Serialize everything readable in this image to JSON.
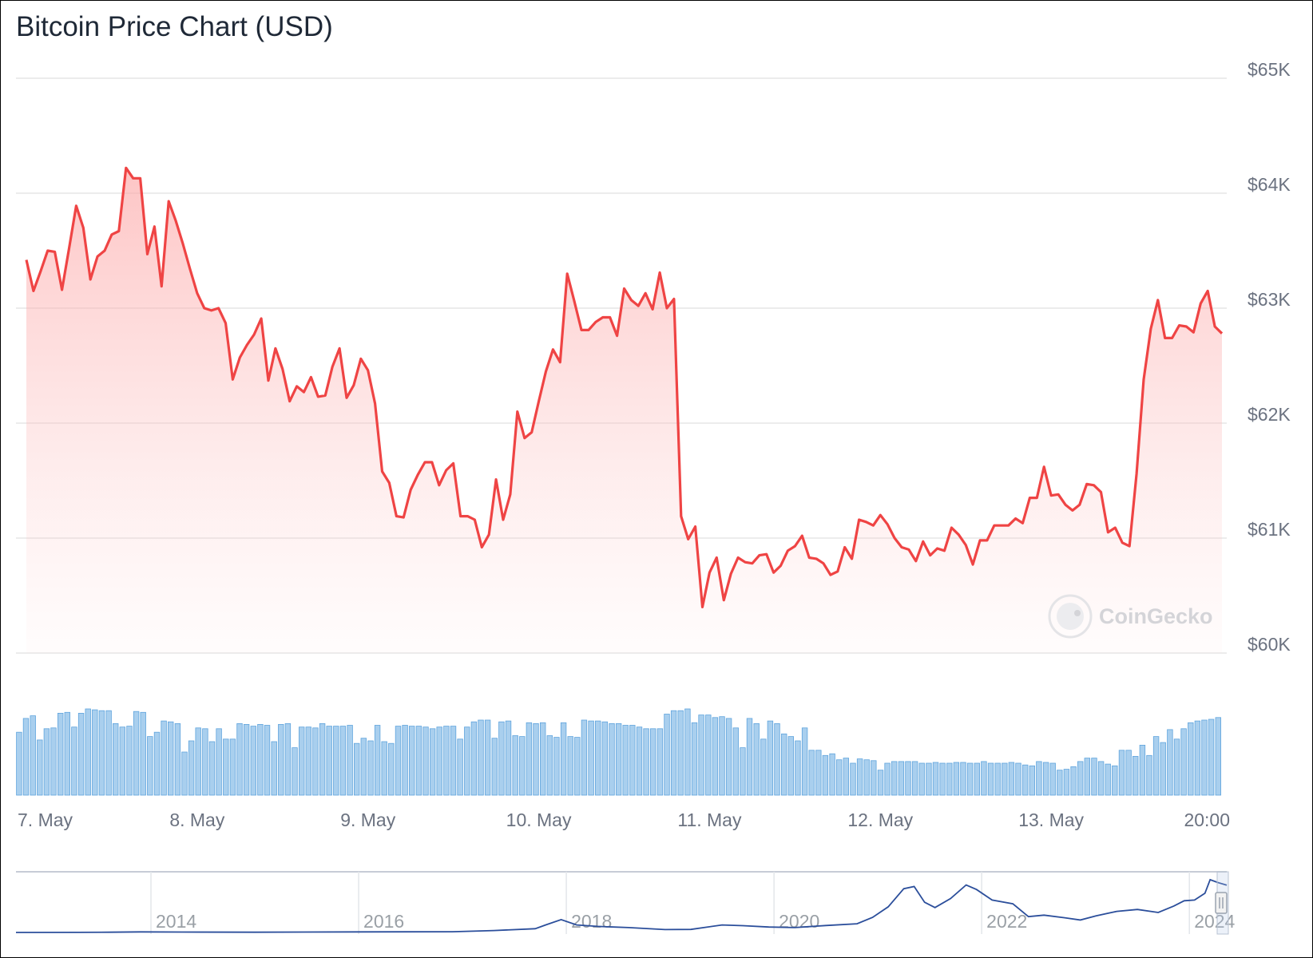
{
  "title": "Bitcoin Price Chart (USD)",
  "watermark": "CoinGecko",
  "colors": {
    "line": "#ef4444",
    "area": "#fecaca",
    "volume": "#a9cfee",
    "volume_stroke": "#5fa4dd",
    "navigator": "#2b4e9b"
  },
  "chart_data": [
    {
      "type": "line",
      "title": "Bitcoin Price Chart (USD)",
      "x_range": [
        "7. May",
        "20:00 13. May"
      ],
      "y_axis": {
        "ticks": [
          60000,
          61000,
          62000,
          63000,
          64000,
          65000
        ],
        "tick_labels": [
          "$60K",
          "$61K",
          "$62K",
          "$63K",
          "$64K",
          "$65K"
        ],
        "min": 60000,
        "max": 65000,
        "position": "right"
      },
      "x_axis": {
        "tick_labels": [
          "7. May",
          "8. May",
          "9. May",
          "10. May",
          "11. May",
          "12. May",
          "13. May",
          "20:00"
        ],
        "tick_hours": [
          0,
          24,
          48,
          72,
          96,
          120,
          144,
          164
        ]
      },
      "grid": true,
      "series": [
        {
          "hours": [
            0,
            1,
            2,
            3,
            4,
            5,
            6,
            7,
            8,
            9,
            10,
            11,
            12,
            13,
            14,
            15,
            16,
            17,
            18,
            19,
            20,
            21,
            22,
            23,
            24,
            25,
            26,
            27,
            28,
            29,
            30,
            31,
            32,
            33,
            34,
            35,
            36,
            37,
            38,
            39,
            40,
            41,
            42,
            43,
            44,
            45,
            46,
            47,
            48,
            49,
            50,
            51,
            52,
            53,
            54,
            55,
            56,
            57,
            58,
            59,
            60,
            61,
            62,
            63,
            64,
            65,
            66,
            67,
            68,
            69,
            70,
            71,
            72,
            73,
            74,
            75,
            76,
            77,
            78,
            79,
            80,
            81,
            82,
            83,
            84,
            85,
            86,
            87,
            88,
            89,
            90,
            91,
            92,
            93,
            94,
            95,
            96,
            97,
            98,
            99,
            100,
            101,
            102,
            103,
            104,
            105,
            106,
            107,
            108,
            109,
            110,
            111,
            112,
            113,
            114,
            115,
            116,
            117,
            118,
            119,
            120,
            121,
            122,
            123,
            124,
            125,
            126,
            127,
            128,
            129,
            130,
            131,
            132,
            133,
            134,
            135,
            136,
            137,
            138,
            139,
            140,
            141,
            142,
            143,
            144,
            145,
            146,
            147,
            148,
            149,
            150,
            151,
            152,
            153,
            154,
            155,
            156,
            157,
            158,
            159,
            160,
            161,
            162,
            163,
            164,
            165,
            166,
            167,
            168
          ],
          "values": [
            63420,
            63150,
            63320,
            63500,
            63490,
            63160,
            63520,
            63890,
            63700,
            63250,
            63450,
            63500,
            63640,
            63670,
            64220,
            64130,
            64130,
            63470,
            63710,
            63190,
            63930,
            63760,
            63560,
            63340,
            63130,
            63000,
            62980,
            63000,
            62870,
            62380,
            62570,
            62680,
            62770,
            62910,
            62370,
            62650,
            62470,
            62190,
            62320,
            62270,
            62400,
            62230,
            62240,
            62490,
            62650,
            62220,
            62330,
            62560,
            62460,
            62170,
            61580,
            61480,
            61190,
            61180,
            61420,
            61550,
            61660,
            61660,
            61460,
            61590,
            61650,
            61190,
            61190,
            61160,
            60920,
            61030,
            61510,
            61160,
            61380,
            62100,
            61870,
            61920,
            62190,
            62450,
            62640,
            62530,
            63300,
            63060,
            62810,
            62810,
            62880,
            62920,
            62920,
            62760,
            63170,
            63070,
            63020,
            63130,
            62990,
            63310,
            63000,
            63080,
            61190,
            60990,
            61100,
            60400,
            60700,
            60830,
            60460,
            60690,
            60830,
            60790,
            60780,
            60850,
            60860,
            60700,
            60760,
            60890,
            60930,
            61020,
            60830,
            60820,
            60780,
            60680,
            60710,
            60920,
            60820,
            61160,
            61140,
            61110,
            61200,
            61120,
            61000,
            60920,
            60900,
            60800,
            60970,
            60850,
            60910,
            60890,
            61090,
            61030,
            60940,
            60770,
            60980,
            60980,
            61110,
            61110,
            61110,
            61170,
            61130,
            61350,
            61350,
            61620,
            61370,
            61380,
            61290,
            61240,
            61290,
            61470,
            61460,
            61400,
            61050,
            61090,
            60960,
            60930,
            61560,
            62380,
            62820,
            63070,
            62740,
            62740,
            62850,
            62840,
            62790,
            63040,
            63150,
            62840,
            62780
          ]
        }
      ]
    },
    {
      "type": "bar",
      "title": "",
      "note_series": "trading volume (relative)",
      "values": [
        0.73,
        0.89,
        0.92,
        0.64,
        0.77,
        0.78,
        0.95,
        0.96,
        0.79,
        0.95,
        1.0,
        0.99,
        0.98,
        0.98,
        0.83,
        0.79,
        0.8,
        0.97,
        0.96,
        0.68,
        0.73,
        0.86,
        0.85,
        0.83,
        0.5,
        0.63,
        0.78,
        0.77,
        0.62,
        0.77,
        0.65,
        0.65,
        0.83,
        0.82,
        0.8,
        0.82,
        0.81,
        0.62,
        0.82,
        0.83,
        0.55,
        0.79,
        0.79,
        0.78,
        0.83,
        0.8,
        0.8,
        0.8,
        0.81,
        0.6,
        0.66,
        0.63,
        0.81,
        0.62,
        0.6,
        0.8,
        0.81,
        0.8,
        0.8,
        0.79,
        0.77,
        0.79,
        0.8,
        0.8,
        0.65,
        0.79,
        0.85,
        0.87,
        0.87,
        0.66,
        0.85,
        0.86,
        0.69,
        0.68,
        0.84,
        0.83,
        0.84,
        0.69,
        0.67,
        0.84,
        0.68,
        0.67,
        0.87,
        0.86,
        0.86,
        0.85,
        0.83,
        0.83,
        0.81,
        0.81,
        0.79,
        0.77,
        0.77,
        0.77,
        0.94,
        0.98,
        0.98,
        1.0,
        0.84,
        0.93,
        0.93,
        0.9,
        0.91,
        0.89,
        0.78,
        0.55,
        0.89,
        0.83,
        0.65,
        0.86,
        0.83,
        0.71,
        0.68,
        0.63,
        0.78,
        0.52,
        0.52,
        0.46,
        0.48,
        0.41,
        0.43,
        0.37,
        0.42,
        0.41,
        0.4,
        0.29,
        0.37,
        0.39,
        0.39,
        0.39,
        0.39,
        0.37,
        0.37,
        0.38,
        0.37,
        0.37,
        0.38,
        0.38,
        0.37,
        0.37,
        0.39,
        0.37,
        0.37,
        0.37,
        0.38,
        0.37,
        0.35,
        0.34,
        0.39,
        0.38,
        0.37,
        0.29,
        0.3,
        0.33,
        0.39,
        0.43,
        0.43,
        0.39,
        0.36,
        0.34,
        0.52,
        0.52,
        0.45,
        0.58,
        0.46,
        0.68,
        0.61,
        0.76,
        0.65,
        0.77,
        0.84,
        0.86,
        0.87,
        0.88,
        0.9
      ]
    },
    {
      "type": "area",
      "title": "",
      "note_series": "navigator (all-time price)",
      "x_tick_labels": [
        "2014",
        "2016",
        "2018",
        "2020",
        "2022",
        "2024"
      ],
      "x_range": [
        2012.7,
        2024.36
      ],
      "x": [
        2012.7,
        2013.3,
        2013.6,
        2013.9,
        2014.3,
        2015.0,
        2016.0,
        2016.9,
        2017.3,
        2017.7,
        2017.8,
        2017.95,
        2018.1,
        2018.3,
        2018.6,
        2018.95,
        2019.2,
        2019.5,
        2019.7,
        2019.95,
        2020.2,
        2020.5,
        2020.8,
        2020.95,
        2021.1,
        2021.25,
        2021.35,
        2021.45,
        2021.55,
        2021.7,
        2021.85,
        2021.95,
        2022.1,
        2022.3,
        2022.45,
        2022.6,
        2022.8,
        2022.95,
        2023.1,
        2023.3,
        2023.5,
        2023.7,
        2023.85,
        2023.95,
        2024.05,
        2024.15,
        2024.2,
        2024.28,
        2024.36
      ],
      "values": [
        10,
        100,
        300,
        700,
        500,
        300,
        700,
        1000,
        2500,
        5000,
        10000,
        17000,
        10000,
        8000,
        6500,
        3800,
        4000,
        10000,
        9000,
        7200,
        6500,
        9200,
        11500,
        20000,
        34000,
        58000,
        61000,
        40000,
        33000,
        45000,
        63000,
        57000,
        43000,
        38000,
        21000,
        23000,
        19500,
        16500,
        22000,
        28000,
        30500,
        26500,
        35000,
        42000,
        43000,
        52000,
        70000,
        66000,
        62800
      ]
    }
  ]
}
